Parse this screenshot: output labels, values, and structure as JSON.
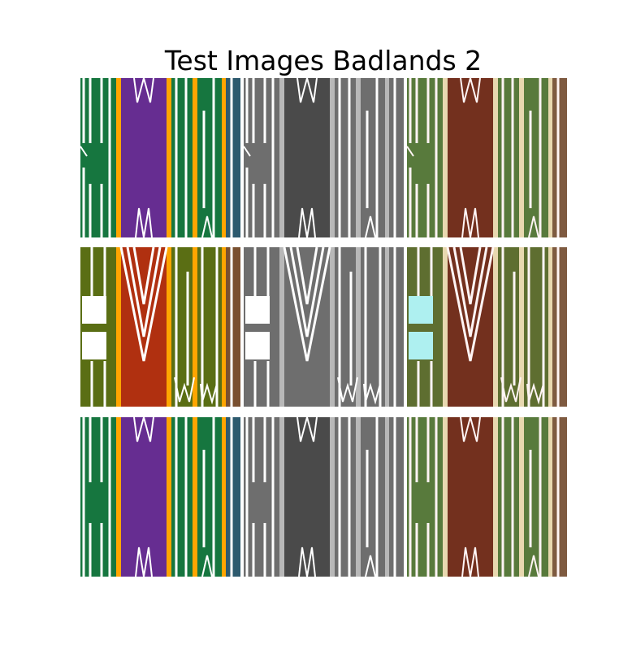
{
  "title": "Test Images Badlands 2",
  "palette": {
    "green": "#16763f",
    "purple": "#662d91",
    "orange": "#ffa500",
    "steel": "#2d5a6e",
    "olive": "#5a6e14",
    "rust": "#b03010",
    "brown": "#7a5030",
    "white": "#ffffff",
    "gray_dark": "#4a4a4a",
    "gray_mid": "#6e6e6e",
    "gray_light": "#b8b8b8",
    "sepia_green": "#587a3c",
    "sepia_red": "#73301e",
    "sepia_olive": "#5e6e30",
    "sepia_brown": "#7e5a40",
    "cyan": "#aef0f0"
  },
  "grid": {
    "rows": 3,
    "columns": [
      "color",
      "grayscale",
      "color-shifted"
    ]
  }
}
